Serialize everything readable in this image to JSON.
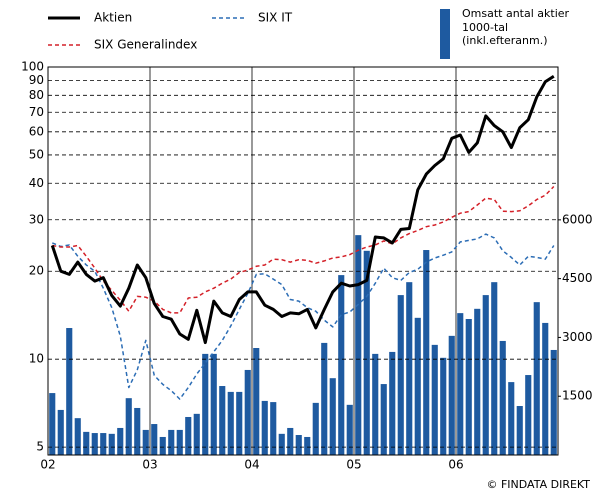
{
  "chart_data": {
    "type": "line",
    "x": [
      0.5,
      1.5,
      2.5,
      3.5,
      4.5,
      5.5,
      6.5,
      7.5,
      8.5,
      9.5,
      10.5,
      11.5,
      12.5,
      13.5,
      14.5,
      15.5,
      16.5,
      17.5,
      18.5,
      19.5,
      20.5,
      21.5,
      22.5,
      23.5,
      24.5,
      25.5,
      26.5,
      27.5,
      28.5,
      29.5,
      30.5,
      31.5,
      32.5,
      33.5,
      34.5,
      35.5,
      36.5,
      37.5,
      38.5,
      39.5,
      40.5,
      41.5,
      42.5,
      43.5,
      44.5,
      45.5,
      46.5,
      47.5,
      48.5,
      49.5,
      50.5,
      51.5,
      52.5,
      53.5,
      54.5,
      55.5,
      56.5,
      57.5,
      58.5,
      59.5
    ],
    "xlim": [
      0,
      60
    ],
    "xticks": [
      {
        "value": 0,
        "label": "02"
      },
      {
        "value": 12,
        "label": "03"
      },
      {
        "value": 24,
        "label": "04"
      },
      {
        "value": 36,
        "label": "05"
      },
      {
        "value": 48,
        "label": "06"
      }
    ],
    "ylim": [
      4.7,
      100
    ],
    "log_y": true,
    "yticks": [
      5,
      10,
      20,
      30,
      40,
      50,
      60,
      70,
      80,
      90,
      100
    ],
    "y2lim": [
      0,
      9900
    ],
    "y2ticks": [
      1500,
      3000,
      4500,
      6000
    ],
    "grid": true,
    "series": [
      {
        "name": "Omsatt antal aktier",
        "kind": "bar",
        "axis": "y2",
        "color": "#1e5aa0",
        "values": [
          1580,
          1150,
          3240,
          940,
          590,
          560,
          560,
          540,
          690,
          1450,
          1200,
          640,
          790,
          460,
          640,
          640,
          970,
          1050,
          2580,
          2580,
          1760,
          1610,
          1610,
          2170,
          2730,
          1380,
          1350,
          540,
          690,
          510,
          460,
          1330,
          2860,
          1960,
          4590,
          1280,
          5610,
          5210,
          2580,
          1810,
          2630,
          4080,
          4410,
          3500,
          5230,
          2810,
          2480,
          3040,
          3620,
          3470,
          3730,
          4080,
          4410,
          2910,
          1860,
          1250,
          2040,
          3900,
          3370,
          2680
        ]
      },
      {
        "name": "SIX IT",
        "kind": "line",
        "color": "#2c6db5",
        "dashed": true,
        "width": 1.5,
        "values": [
          25,
          24.3,
          24.6,
          22.5,
          21,
          20,
          17.5,
          15,
          12,
          8,
          9.2,
          11.6,
          8.8,
          8.2,
          7.8,
          7.3,
          8,
          8.9,
          9.7,
          10.6,
          11.6,
          13,
          14.8,
          16.8,
          19.5,
          19.6,
          18.8,
          18,
          16,
          15.8,
          15,
          14.6,
          13.6,
          12.9,
          14.2,
          14.5,
          15.4,
          16.4,
          18.2,
          20.5,
          19,
          18.6,
          19.8,
          20.3,
          21.5,
          22.2,
          22.7,
          23.3,
          25.2,
          25.5,
          25.8,
          26.8,
          26,
          23.5,
          22.3,
          21,
          22.5,
          22.3,
          22,
          24.5
        ]
      },
      {
        "name": "SIX Generalindex",
        "kind": "line",
        "color": "#d42028",
        "dashed": true,
        "width": 1.5,
        "values": [
          24.5,
          24.2,
          24.2,
          24.5,
          22.5,
          20.5,
          18.5,
          17.2,
          15.9,
          14.6,
          16.4,
          16.3,
          15.8,
          14.8,
          14.4,
          14.4,
          16.2,
          16.3,
          17,
          17.5,
          18.2,
          18.8,
          19.8,
          20.2,
          20.8,
          21,
          22,
          21.9,
          21.5,
          21.9,
          21.8,
          21.3,
          21.7,
          22.2,
          22.4,
          22.8,
          23.6,
          24.2,
          24.6,
          25.4,
          24.8,
          26,
          26.9,
          27.6,
          28.4,
          28.8,
          29.5,
          30.6,
          31.6,
          32,
          33.7,
          35.6,
          35.2,
          32.1,
          32,
          32.2,
          33.5,
          35.2,
          36.4,
          39
        ]
      },
      {
        "name": "Aktien",
        "kind": "line",
        "color": "#000000",
        "dashed": false,
        "width": 3,
        "values": [
          24.5,
          20,
          19.5,
          21.5,
          19.5,
          18.5,
          19,
          16.5,
          15.2,
          17.5,
          21,
          19,
          15.5,
          14,
          13.7,
          12.2,
          11.7,
          14.7,
          11.4,
          15.8,
          14.4,
          14,
          16,
          17,
          17,
          15.3,
          14.8,
          14,
          14.4,
          14.3,
          14.8,
          12.8,
          14.8,
          17,
          18.2,
          17.8,
          18,
          18.6,
          26.2,
          26,
          25,
          27.8,
          28,
          38,
          43,
          46,
          48.5,
          57,
          58.5,
          51,
          55,
          68,
          63,
          60,
          53,
          62,
          66,
          79,
          89,
          93
        ]
      }
    ],
    "legend_note": [
      "1000-tal",
      "(inkl.efteranm.)"
    ],
    "source": "© FINDATA DIREKT"
  }
}
